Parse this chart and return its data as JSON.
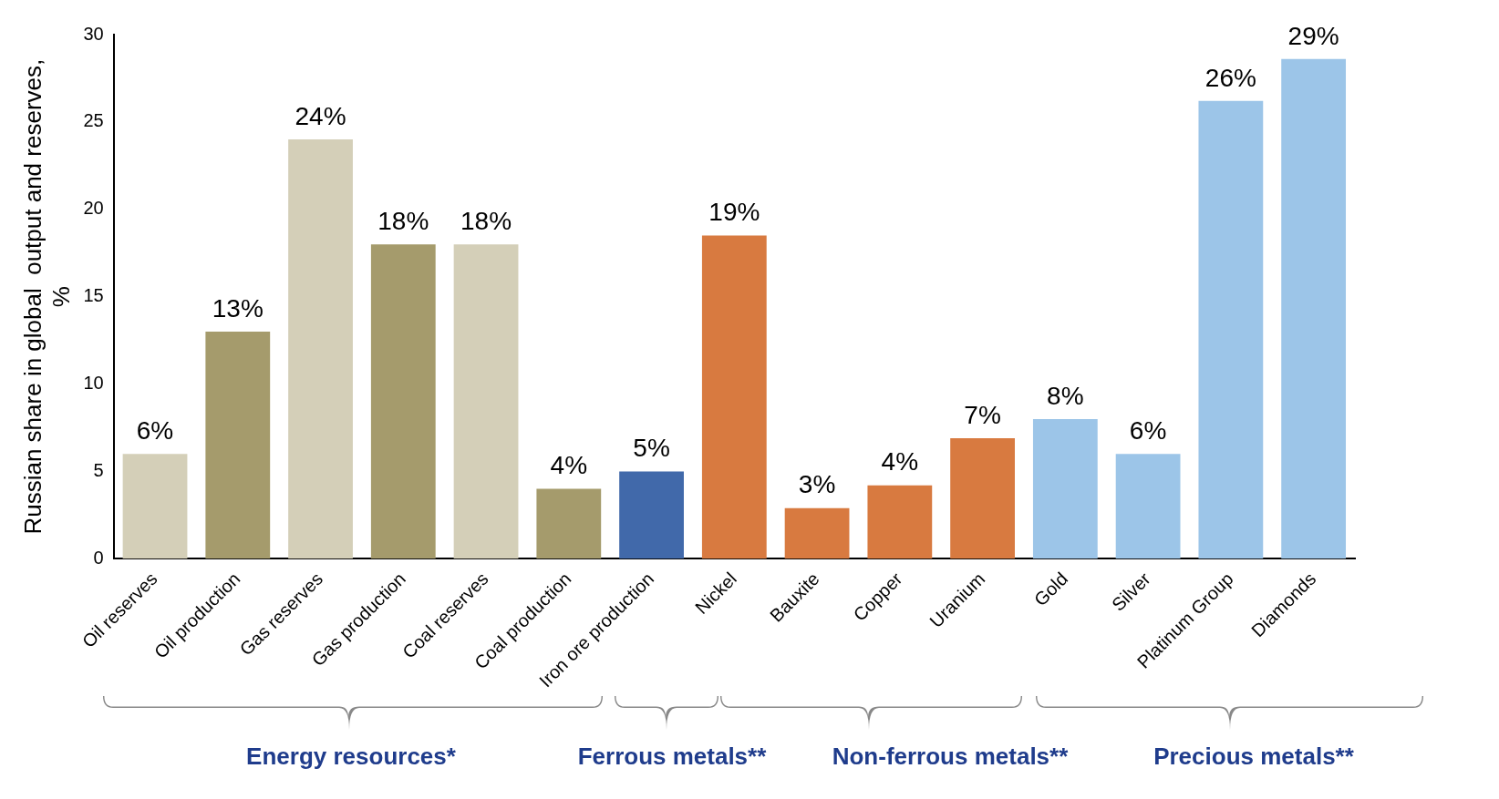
{
  "chart_data": {
    "type": "bar",
    "ylabel": "Russian share in global  output and reserves, %",
    "categories": [
      "Oil reserves",
      "Oil production",
      "Gas reserves",
      "Gas production",
      "Coal reserves",
      "Coal production",
      "Iron ore production",
      "Nickel",
      "Bauxite",
      "Copper",
      "Uranium",
      "Gold",
      "Silver",
      "Platinum Group",
      "Diamonds"
    ],
    "values": [
      6,
      13,
      24,
      18,
      18,
      4,
      5,
      18.5,
      2.9,
      4.2,
      6.9,
      8,
      6,
      26.2,
      28.6
    ],
    "colors": [
      "#d4cfb8",
      "#a59b6c",
      "#d4cfb8",
      "#a59b6c",
      "#d4cfb8",
      "#a59b6c",
      "#4169aa",
      "#d87a40",
      "#d87a40",
      "#d87a40",
      "#d87a40",
      "#9cc5e8",
      "#9cc5e8",
      "#9cc5e8",
      "#9cc5e8"
    ],
    "value_labels": [
      "6%",
      "13%",
      "24%",
      "18%",
      "18%",
      "4%",
      "5%",
      "19%",
      "3%",
      "4%",
      "7%",
      "8%",
      "6%",
      "26%",
      "29%"
    ],
    "ylim": [
      0,
      30
    ],
    "yticks": [
      0,
      5,
      10,
      15,
      20,
      25,
      30
    ],
    "grid": false,
    "legend": false,
    "annotations": [
      "Energy resources*",
      "Ferrous metals**",
      "Non-ferrous metals**",
      "Precious metals**"
    ]
  }
}
